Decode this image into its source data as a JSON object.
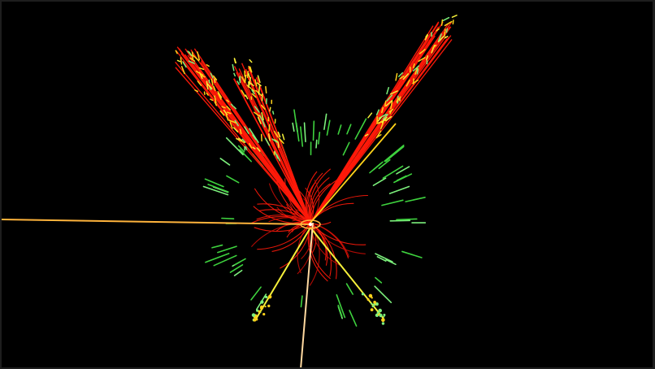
{
  "scene": {
    "subject": "particle-collision-event-display",
    "colors": {
      "background": "#000000",
      "frame": "#1e1e1e",
      "tracks": "#ff1a0a",
      "tracks_dark": "#c40c05",
      "jets": "#ffd21a",
      "jets_alt": "#f5f03a",
      "calorimeter": "#3ed23e",
      "calorimeter_light": "#7cf07c",
      "muon": "#ffb43c",
      "muon_pale": "#ffd9a0"
    }
  }
}
